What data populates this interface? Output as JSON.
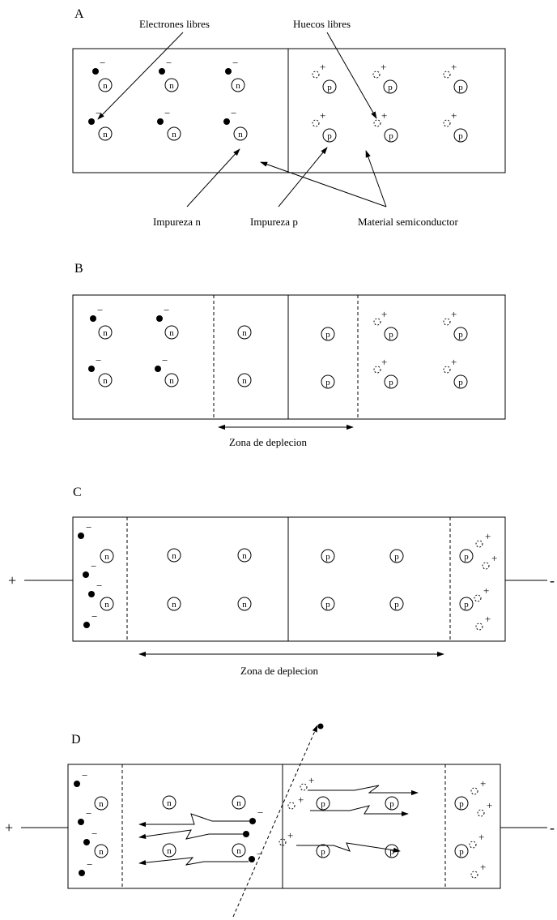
{
  "panels": {
    "a": {
      "letter": "A",
      "label_electrons": "Electrones libres",
      "label_holes": "Huecos libres",
      "label_impurity_n": "Impureza n",
      "label_impurity_p": "Impureza p",
      "label_material": "Material semiconductor"
    },
    "b": {
      "letter": "B",
      "label_depletion": "Zona de deplecion"
    },
    "c": {
      "letter": "C",
      "label_depletion": "Zona de deplecion",
      "terminal_left": "+",
      "terminal_right": "-"
    },
    "d": {
      "letter": "D",
      "terminal_left": "+",
      "terminal_right": "-"
    }
  },
  "symbols": {
    "n": "n",
    "p": "p",
    "minus": "−",
    "plus": "+"
  }
}
